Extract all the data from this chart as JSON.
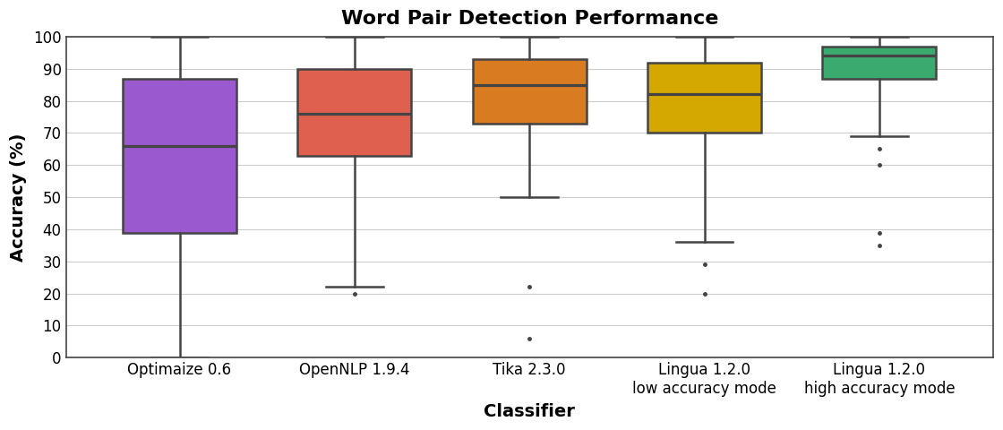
{
  "title": "Word Pair Detection Performance",
  "xlabel": "Classifier",
  "ylabel": "Accuracy (%)",
  "ylim": [
    0,
    100
  ],
  "yticks": [
    0,
    10,
    20,
    30,
    40,
    50,
    60,
    70,
    80,
    90,
    100
  ],
  "categories": [
    "Optimaize 0.6",
    "OpenNLP 1.9.4",
    "Tika 2.3.0",
    "Lingua 1.2.0\nlow accuracy mode",
    "Lingua 1.2.0\nhigh accuracy mode"
  ],
  "box_colors": [
    "#9B59D0",
    "#E06050",
    "#D97B20",
    "#D4A800",
    "#3BAA6E"
  ],
  "edge_color": "#444444",
  "median_color": "#444444",
  "whisker_color": "#444444",
  "flier_color": "#444444",
  "box_data": [
    {
      "q1": 39,
      "median": 66,
      "q3": 87,
      "whislo": 0,
      "whishi": 100,
      "fliers": []
    },
    {
      "q1": 63,
      "median": 76,
      "q3": 90,
      "whislo": 22,
      "whishi": 100,
      "fliers": [
        20
      ]
    },
    {
      "q1": 73,
      "median": 85,
      "q3": 93,
      "whislo": 50,
      "whishi": 100,
      "fliers": [
        22,
        6
      ]
    },
    {
      "q1": 70,
      "median": 82,
      "q3": 92,
      "whislo": 36,
      "whishi": 100,
      "fliers": [
        29,
        20
      ]
    },
    {
      "q1": 87,
      "median": 94,
      "q3": 97,
      "whislo": 69,
      "whishi": 100,
      "fliers": [
        65,
        60,
        39,
        35
      ]
    }
  ],
  "background_color": "#FFFFFF",
  "grid_color": "#CCCCCC",
  "title_fontsize": 16,
  "label_fontsize": 14,
  "tick_fontsize": 12,
  "box_width": 0.65,
  "linewidth": 1.8
}
